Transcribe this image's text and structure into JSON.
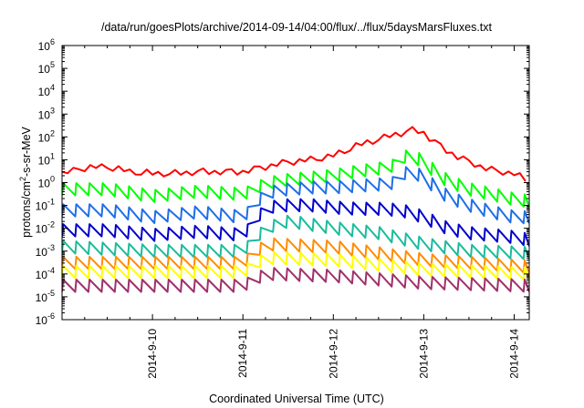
{
  "chart_data": {
    "type": "line",
    "title": "/data/run/goesPlots/archive/2014-09-14/04:00/flux/../flux/5daysMarsFluxes.txt",
    "xlabel": "Coordinated Universal Time (UTC)",
    "ylabel": "protons/cm2-s-sr-MeV",
    "ylabel_parts": {
      "base": "protons/cm",
      "sup": "2",
      "rest": "-s-sr-MeV"
    },
    "x_unit": "days",
    "xlim": [
      "2014-09-09 00:00",
      "2014-09-14 04:00"
    ],
    "yscale": "log",
    "ylim": [
      1e-06,
      1000000.0
    ],
    "x_ticks": [
      "2014-9-10",
      "2014-9-11",
      "2014-9-12",
      "2014-9-13",
      "2014-9-14"
    ],
    "y_tick_exponents": [
      -6,
      -5,
      -4,
      -3,
      -2,
      -1,
      0,
      1,
      2,
      3,
      4,
      5,
      6
    ],
    "y_tick_base": "10",
    "grid": false,
    "legend": "none",
    "sawtooth_period_hours": 3.5,
    "series": [
      {
        "color": "#ff0000",
        "sawtooth": false,
        "points": [
          [
            "2014-09-09 00:00",
            2.5
          ],
          [
            "2014-09-09 06:00",
            4.5
          ],
          [
            "2014-09-09 12:00",
            5
          ],
          [
            "2014-09-09 18:00",
            3
          ],
          [
            "2014-09-10 00:00",
            2.5
          ],
          [
            "2014-09-10 06:00",
            2.5
          ],
          [
            "2014-09-10 12:00",
            3
          ],
          [
            "2014-09-10 18:00",
            3
          ],
          [
            "2014-09-11 00:00",
            3
          ],
          [
            "2014-09-11 06:00",
            5
          ],
          [
            "2014-09-11 12:00",
            8
          ],
          [
            "2014-09-11 18:00",
            10
          ],
          [
            "2014-09-12 00:00",
            15
          ],
          [
            "2014-09-12 06:00",
            40
          ],
          [
            "2014-09-12 12:00",
            80
          ],
          [
            "2014-09-12 18:00",
            150
          ],
          [
            "2014-09-12 21:00",
            200
          ],
          [
            "2014-09-13 00:00",
            150
          ],
          [
            "2014-09-13 03:00",
            60
          ],
          [
            "2014-09-13 06:00",
            25
          ],
          [
            "2014-09-13 12:00",
            8
          ],
          [
            "2014-09-13 18:00",
            3.5
          ],
          [
            "2014-09-14 00:00",
            2.5
          ],
          [
            "2014-09-14 04:00",
            1
          ]
        ]
      },
      {
        "color": "#00ff00",
        "sawtooth": true,
        "points": [
          [
            "2014-09-09 00:00",
            0.5
          ],
          [
            "2014-09-09 12:00",
            0.5
          ],
          [
            "2014-09-10 00:00",
            0.25
          ],
          [
            "2014-09-10 12:00",
            0.4
          ],
          [
            "2014-09-11 00:00",
            0.3
          ],
          [
            "2014-09-11 06:00",
            0.9
          ],
          [
            "2014-09-11 12:00",
            1.3
          ],
          [
            "2014-09-11 18:00",
            1.6
          ],
          [
            "2014-09-12 00:00",
            2
          ],
          [
            "2014-09-12 06:00",
            3
          ],
          [
            "2014-09-12 12:00",
            4
          ],
          [
            "2014-09-12 17:00",
            6
          ],
          [
            "2014-09-12 20:00",
            20
          ],
          [
            "2014-09-13 00:00",
            7
          ],
          [
            "2014-09-13 06:00",
            1.2
          ],
          [
            "2014-09-13 12:00",
            0.5
          ],
          [
            "2014-09-13 18:00",
            0.3
          ],
          [
            "2014-09-14 00:00",
            0.18
          ],
          [
            "2014-09-14 04:00",
            0.15
          ]
        ]
      },
      {
        "color": "#1e6fe6",
        "sawtooth": true,
        "points": [
          [
            "2014-09-09 00:00",
            0.06
          ],
          [
            "2014-09-09 12:00",
            0.06
          ],
          [
            "2014-09-10 00:00",
            0.03
          ],
          [
            "2014-09-10 12:00",
            0.05
          ],
          [
            "2014-09-11 00:00",
            0.03
          ],
          [
            "2014-09-11 06:00",
            0.35
          ],
          [
            "2014-09-11 12:00",
            0.5
          ],
          [
            "2014-09-11 18:00",
            0.6
          ],
          [
            "2014-09-12 00:00",
            0.6
          ],
          [
            "2014-09-12 06:00",
            0.7
          ],
          [
            "2014-09-12 12:00",
            0.8
          ],
          [
            "2014-09-12 17:00",
            1
          ],
          [
            "2014-09-12 20:00",
            4
          ],
          [
            "2014-09-13 00:00",
            1.5
          ],
          [
            "2014-09-13 06:00",
            0.25
          ],
          [
            "2014-09-13 12:00",
            0.1
          ],
          [
            "2014-09-13 18:00",
            0.05
          ],
          [
            "2014-09-14 00:00",
            0.03
          ],
          [
            "2014-09-14 04:00",
            0.03
          ]
        ]
      },
      {
        "color": "#0000cc",
        "sawtooth": true,
        "points": [
          [
            "2014-09-09 00:00",
            0.008
          ],
          [
            "2014-09-09 12:00",
            0.008
          ],
          [
            "2014-09-10 00:00",
            0.005
          ],
          [
            "2014-09-10 12:00",
            0.007
          ],
          [
            "2014-09-11 00:00",
            0.005
          ],
          [
            "2014-09-11 06:00",
            0.08
          ],
          [
            "2014-09-11 12:00",
            0.1
          ],
          [
            "2014-09-11 18:00",
            0.1
          ],
          [
            "2014-09-12 00:00",
            0.08
          ],
          [
            "2014-09-12 06:00",
            0.07
          ],
          [
            "2014-09-12 12:00",
            0.07
          ],
          [
            "2014-09-12 18:00",
            0.06
          ],
          [
            "2014-09-13 00:00",
            0.03
          ],
          [
            "2014-09-13 06:00",
            0.01
          ],
          [
            "2014-09-13 12:00",
            0.006
          ],
          [
            "2014-09-14 00:00",
            0.004
          ],
          [
            "2014-09-14 04:00",
            0.003
          ]
        ]
      },
      {
        "color": "#1abc9c",
        "sawtooth": true,
        "points": [
          [
            "2014-09-09 00:00",
            0.0015
          ],
          [
            "2014-09-10 00:00",
            0.001
          ],
          [
            "2014-09-11 00:00",
            0.001
          ],
          [
            "2014-09-11 06:00",
            0.01
          ],
          [
            "2014-09-11 12:00",
            0.02
          ],
          [
            "2014-09-12 00:00",
            0.01
          ],
          [
            "2014-09-12 12:00",
            0.006
          ],
          [
            "2014-09-13 00:00",
            0.002
          ],
          [
            "2014-09-13 12:00",
            0.001
          ],
          [
            "2014-09-14 04:00",
            0.0008
          ]
        ]
      },
      {
        "color": "#ff8c00",
        "sawtooth": true,
        "points": [
          [
            "2014-09-09 00:00",
            0.0003
          ],
          [
            "2014-09-11 00:00",
            0.0003
          ],
          [
            "2014-09-11 06:00",
            0.002
          ],
          [
            "2014-09-12 00:00",
            0.0015
          ],
          [
            "2014-09-13 00:00",
            0.0004
          ],
          [
            "2014-09-14 04:00",
            0.0002
          ]
        ]
      },
      {
        "color": "#ffff00",
        "sawtooth": true,
        "points": [
          [
            "2014-09-09 00:00",
            0.00012
          ],
          [
            "2014-09-11 00:00",
            0.00012
          ],
          [
            "2014-09-11 06:00",
            0.0005
          ],
          [
            "2014-09-12 00:00",
            0.0004
          ],
          [
            "2014-09-13 00:00",
            0.00015
          ],
          [
            "2014-09-14 04:00",
            0.0001
          ]
        ]
      },
      {
        "color": "#a0306a",
        "sawtooth": true,
        "points": [
          [
            "2014-09-09 00:00",
            3e-05
          ],
          [
            "2014-09-11 00:00",
            3e-05
          ],
          [
            "2014-09-11 06:00",
            0.0001
          ],
          [
            "2014-09-12 00:00",
            8e-05
          ],
          [
            "2014-09-13 00:00",
            4e-05
          ],
          [
            "2014-09-14 04:00",
            3e-05
          ]
        ]
      }
    ]
  }
}
